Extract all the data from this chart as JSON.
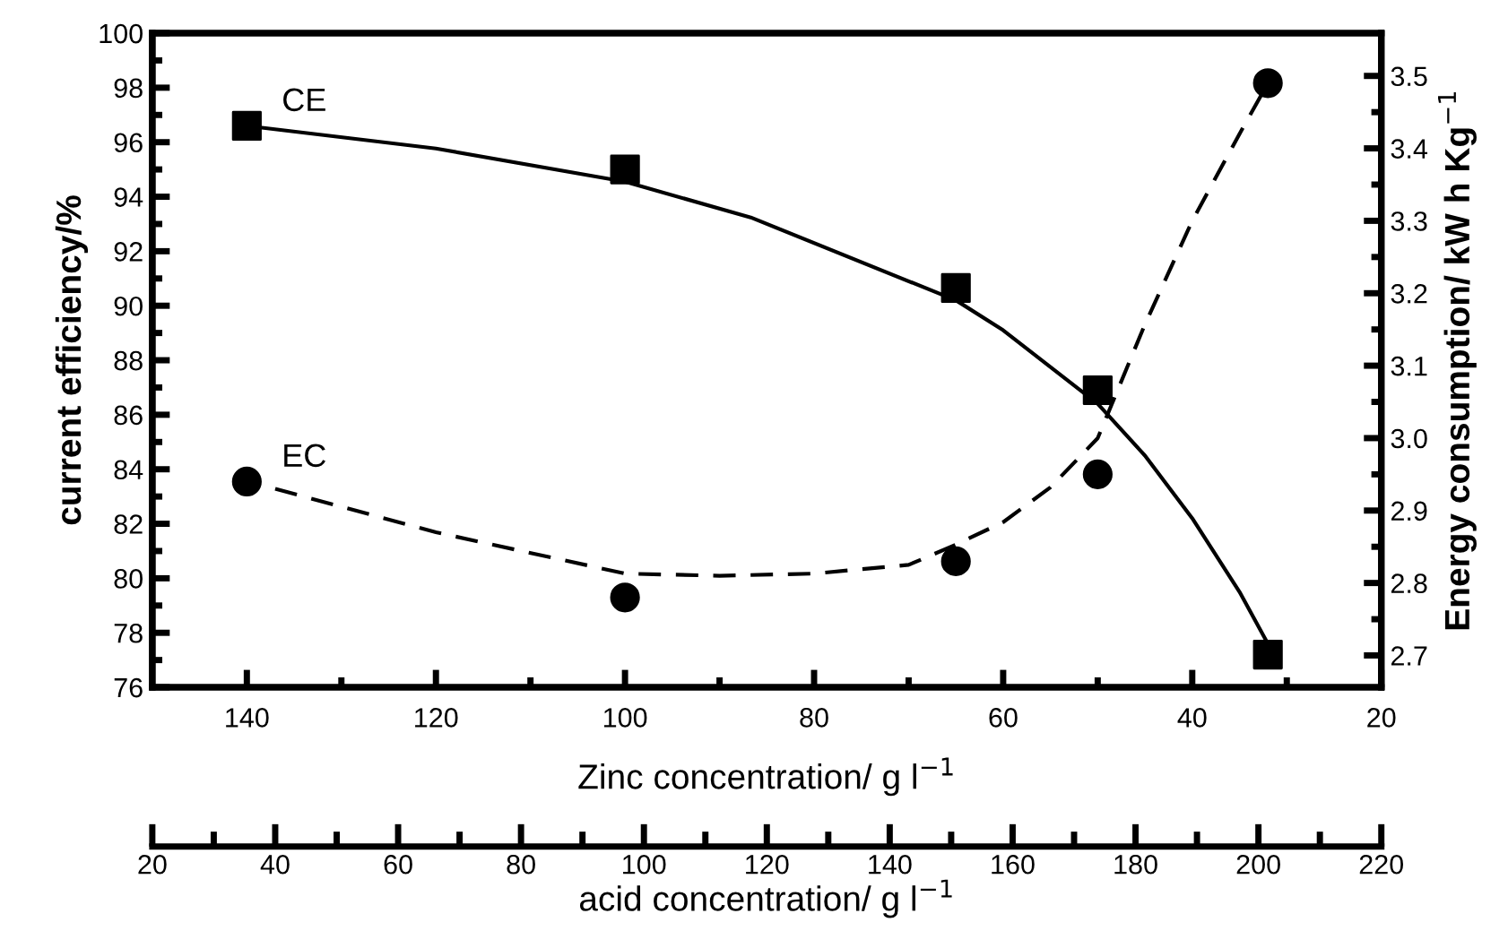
{
  "chart_data": {
    "type": "scatter",
    "xlabel": "Zinc concentration/ g l$^{−1}$",
    "ylabel": "current efficiency/%",
    "y2label": "Energy consumption/ kW h Kg$^{−1}$",
    "x2label": "acid concentration/ g l$^{−1}$",
    "xlim": [
      150,
      20
    ],
    "xticks": [
      140,
      {
        "value": 130,
        "label": null
      },
      120,
      {
        "value": 110,
        "label": null
      },
      100,
      {
        "value": 90,
        "label": null
      },
      80,
      {
        "value": 70,
        "label": null
      },
      60,
      {
        "value": 50,
        "label": null
      },
      40,
      {
        "value": 30,
        "label": null
      },
      20
    ],
    "ylim": [
      76,
      100
    ],
    "yticks": [
      76,
      {
        "value": 77,
        "label": null
      },
      78,
      {
        "value": 79,
        "label": null
      },
      80,
      {
        "value": 81,
        "label": null
      },
      82,
      {
        "value": 83,
        "label": null
      },
      84,
      {
        "value": 85,
        "label": null
      },
      86,
      {
        "value": 87,
        "label": null
      },
      88,
      {
        "value": 89,
        "label": null
      },
      90,
      {
        "value": 91,
        "label": null
      },
      92,
      {
        "value": 93,
        "label": null
      },
      94,
      {
        "value": 95,
        "label": null
      },
      96,
      {
        "value": 97,
        "label": null
      },
      98,
      {
        "value": 99,
        "label": null
      },
      100
    ],
    "y2lim": [
      2.656,
      3.559
    ],
    "y2ticks": [
      2.7,
      {
        "value": 2.75,
        "label": null
      },
      2.8,
      {
        "value": 2.85,
        "label": null
      },
      2.9,
      {
        "value": 2.95,
        "label": null
      },
      {
        "value": 3.0,
        "label": "3.0"
      },
      {
        "value": 3.05,
        "label": null
      },
      3.1,
      {
        "value": 3.15,
        "label": null
      },
      3.2,
      {
        "value": 3.25,
        "label": null
      },
      3.3,
      {
        "value": 3.35,
        "label": null
      },
      3.4,
      {
        "value": 3.45,
        "label": null
      },
      3.5
    ],
    "x2lim": [
      20,
      220
    ],
    "x2ticks": [
      20,
      40,
      60,
      80,
      100,
      120,
      140,
      160,
      180,
      200,
      220
    ],
    "grid": false,
    "legend": false,
    "series": [
      {
        "name": "CE",
        "type": "scatter",
        "marker": "square",
        "color": "#000000",
        "x": [
          140,
          100,
          65,
          50,
          32
        ],
        "values": [
          96.6,
          95.0,
          90.65,
          86.9,
          77.2
        ]
      },
      {
        "name": "EC",
        "type": "scatter",
        "marker": "circle",
        "color": "#000000",
        "axis": "y2",
        "x": [
          140,
          100,
          65,
          50,
          32
        ],
        "values": [
          2.94,
          2.78,
          2.83,
          2.95,
          3.49
        ]
      },
      {
        "type": "line",
        "line_style": "solid",
        "color": "#000000",
        "x": [
          140,
          120,
          100,
          86.7,
          65,
          60,
          50,
          45,
          40,
          35,
          32
        ],
        "values": [
          96.6,
          95.77,
          94.55,
          93.24,
          90.2,
          89.1,
          86.4,
          84.5,
          82.2,
          79.5,
          77.6
        ]
      },
      {
        "type": "line",
        "line_style": "dashed",
        "color": "#000000",
        "axis": "y2",
        "x": [
          137,
          120,
          100,
          90,
          80,
          70,
          65,
          60,
          55,
          50,
          45,
          40,
          35,
          32
        ],
        "values": [
          2.93,
          2.87,
          2.813,
          2.81,
          2.813,
          2.825,
          2.853,
          2.884,
          2.932,
          3.0,
          3.157,
          3.3,
          3.42,
          3.49
        ]
      }
    ]
  }
}
